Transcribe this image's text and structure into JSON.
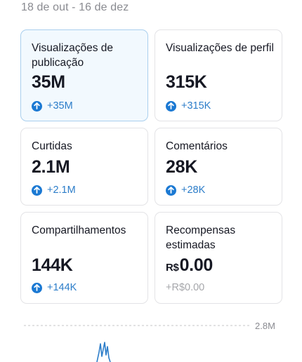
{
  "date_range": "18 de out - 16 de dez",
  "cards": [
    {
      "label": "Visualizações de publicação",
      "value": "35M",
      "change": "+35M"
    },
    {
      "label": "Visualizações de perfil",
      "value": "315K",
      "change": "+315K"
    },
    {
      "label": "Curtidas",
      "value": "2.1M",
      "change": "+2.1M"
    },
    {
      "label": "Comentários",
      "value": "28K",
      "change": "+28K"
    },
    {
      "label": "Compartilhamentos",
      "value": "144K",
      "change": "+144K"
    },
    {
      "label": "Recompensas estimadas",
      "currency": "R$",
      "value": "0.00",
      "change": "+R$0.00"
    }
  ],
  "chart": {
    "y_max_label": "2.8M",
    "colors": {
      "line": "#2c7dc9",
      "grid": "#c4c4c7"
    }
  }
}
